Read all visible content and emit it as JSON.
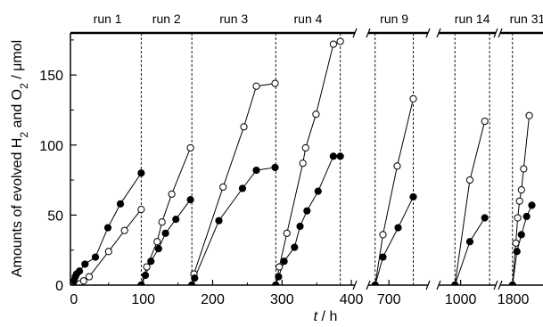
{
  "chart_data": {
    "type": "scatter",
    "title": "",
    "xlabel": {
      "italic": "t",
      "rest": " / h"
    },
    "ylabel": {
      "parts": [
        "Amounts of evolved H",
        "2",
        " and O",
        "2",
        " / μmol"
      ]
    },
    "ylim": [
      0,
      180
    ],
    "yticks": [
      0,
      50,
      100,
      150
    ],
    "x_axis_broken": true,
    "x_segments": [
      {
        "xlim": [
          -5,
          405
        ],
        "ticks": [
          0,
          100,
          200,
          300,
          400
        ]
      },
      {
        "xlim": [
          655,
          785
        ],
        "ticks": [
          700
        ]
      },
      {
        "xlim": [
          950,
          1080
        ],
        "ticks": [
          1000
        ]
      },
      {
        "xlim": [
          1765,
          1880
        ],
        "ticks": [
          1800
        ]
      }
    ],
    "run_boundaries": [
      97,
      170,
      291,
      384,
      670,
      753,
      987,
      1066,
      1798
    ],
    "runs": [
      "run 1",
      "run 2",
      "run 3",
      "run 4",
      "run 9",
      "run 14",
      "run 31"
    ],
    "series": [
      {
        "marker": "open",
        "runs": [
          {
            "run": "run 1",
            "points": [
              [
                0,
                0
              ],
              [
                3,
                0
              ],
              [
                8,
                1
              ],
              [
                14,
                3
              ],
              [
                22,
                6
              ],
              [
                50,
                24
              ],
              [
                73,
                39
              ],
              [
                97,
                54
              ]
            ]
          },
          {
            "run": "run 2",
            "points": [
              [
                97,
                0
              ],
              [
                105,
                13
              ],
              [
                120,
                31
              ],
              [
                127,
                45
              ],
              [
                141,
                65
              ],
              [
                168,
                98
              ]
            ]
          },
          {
            "run": "run 3",
            "points": [
              [
                170,
                0
              ],
              [
                173,
                8
              ],
              [
                215,
                70
              ],
              [
                245,
                113
              ],
              [
                263,
                142
              ],
              [
                290,
                144
              ]
            ]
          },
          {
            "run": "run 4",
            "points": [
              [
                291,
                0
              ],
              [
                296,
                13
              ],
              [
                307,
                37
              ],
              [
                330,
                87
              ],
              [
                334,
                98
              ],
              [
                349,
                122
              ],
              [
                374,
                172
              ],
              [
                384,
                174
              ]
            ]
          },
          {
            "run": "run 9",
            "points": [
              [
                670,
                0
              ],
              [
                687,
                36
              ],
              [
                718,
                85
              ],
              [
                753,
                133
              ]
            ]
          },
          {
            "run": "run 14",
            "points": [
              [
                987,
                0
              ],
              [
                1021,
                75
              ],
              [
                1055,
                117
              ]
            ]
          },
          {
            "run": "run 31",
            "points": [
              [
                1798,
                0
              ],
              [
                1807,
                30
              ],
              [
                1812,
                48
              ],
              [
                1817,
                60
              ],
              [
                1822,
                68
              ],
              [
                1828,
                83
              ],
              [
                1843,
                121
              ]
            ]
          }
        ]
      },
      {
        "marker": "filled",
        "runs": [
          {
            "run": "run 1",
            "points": [
              [
                0,
                3
              ],
              [
                2,
                6
              ],
              [
                4,
                8
              ],
              [
                8,
                10
              ],
              [
                16,
                15
              ],
              [
                31,
                20
              ],
              [
                49,
                41
              ],
              [
                67,
                58
              ],
              [
                97,
                80
              ]
            ]
          },
          {
            "run": "run 2",
            "points": [
              [
                97,
                0
              ],
              [
                103,
                7
              ],
              [
                111,
                17
              ],
              [
                122,
                26
              ],
              [
                132,
                37
              ],
              [
                147,
                47
              ],
              [
                168,
                61
              ]
            ]
          },
          {
            "run": "run 3",
            "points": [
              [
                170,
                0
              ],
              [
                174,
                5
              ],
              [
                209,
                46
              ],
              [
                243,
                69
              ],
              [
                263,
                82
              ],
              [
                290,
                84
              ]
            ]
          },
          {
            "run": "run 4",
            "points": [
              [
                291,
                0
              ],
              [
                295,
                6
              ],
              [
                303,
                17
              ],
              [
                318,
                27
              ],
              [
                326,
                42
              ],
              [
                336,
                53
              ],
              [
                352,
                67
              ],
              [
                374,
                92
              ],
              [
                384,
                92
              ]
            ]
          },
          {
            "run": "run 9",
            "points": [
              [
                670,
                0
              ],
              [
                687,
                20
              ],
              [
                720,
                41
              ],
              [
                753,
                63
              ]
            ]
          },
          {
            "run": "run 14",
            "points": [
              [
                987,
                0
              ],
              [
                1021,
                31
              ],
              [
                1055,
                48
              ]
            ]
          },
          {
            "run": "run 31",
            "points": [
              [
                1798,
                0
              ],
              [
                1810,
                24
              ],
              [
                1822,
                36
              ],
              [
                1836,
                49
              ],
              [
                1850,
                57
              ]
            ]
          }
        ]
      }
    ]
  }
}
